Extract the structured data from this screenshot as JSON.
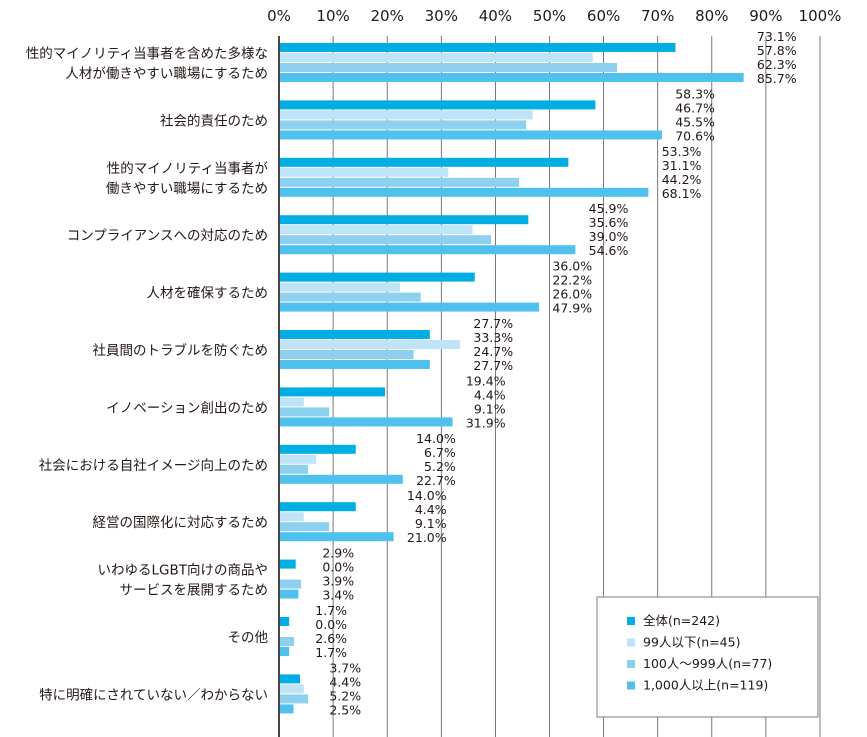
{
  "chart_data": {
    "type": "bar",
    "orientation": "horizontal",
    "title": "",
    "xlabel": "",
    "ylabel": "",
    "xlim": [
      0,
      100
    ],
    "x_ticks": [
      "0%",
      "10%",
      "20%",
      "30%",
      "40%",
      "50%",
      "60%",
      "70%",
      "80%",
      "90%",
      "100%"
    ],
    "grid": true,
    "legend_position": "bottom-right",
    "categories": [
      [
        "性的マイノリティ当事者を含めた多様な",
        "人材が働きやすい職場にするため"
      ],
      [
        "社会的責任のため"
      ],
      [
        "性的マイノリティ当事者が",
        "働きやすい職場にするため"
      ],
      [
        "コンプライアンスへの対応のため"
      ],
      [
        "人材を確保するため"
      ],
      [
        "社員間のトラブルを防ぐため"
      ],
      [
        "イノベーション創出のため"
      ],
      [
        "社会における自社イメージ向上のため"
      ],
      [
        "経営の国際化に対応するため"
      ],
      [
        "いわゆるLGBT向けの商品や",
        "サービスを展開するため"
      ],
      [
        "その他"
      ],
      [
        "特に明確にされていない／わからない"
      ]
    ],
    "series": [
      {
        "name": "全体(n=242)",
        "color": "#00aee4",
        "values": [
          73.1,
          58.3,
          53.3,
          45.9,
          36.0,
          27.7,
          19.4,
          14.0,
          14.0,
          2.9,
          1.7,
          3.7
        ]
      },
      {
        "name": "99人以下(n=45)",
        "color": "#bfe4f7",
        "values": [
          57.8,
          46.7,
          31.1,
          35.6,
          22.2,
          33.3,
          4.4,
          6.7,
          4.4,
          0.0,
          0.0,
          4.4
        ]
      },
      {
        "name": "100人～999人(n=77)",
        "color": "#8dd0f0",
        "values": [
          62.3,
          45.5,
          44.2,
          39.0,
          26.0,
          24.7,
          9.1,
          5.2,
          9.1,
          3.9,
          2.6,
          5.2
        ]
      },
      {
        "name": "1,000人以上(n=119)",
        "color": "#4fc1ee",
        "values": [
          85.7,
          70.6,
          68.1,
          54.6,
          47.9,
          27.7,
          31.9,
          22.7,
          21.0,
          3.4,
          1.7,
          2.5
        ]
      }
    ],
    "value_labels": [
      [
        "73.1%",
        "57.8%",
        "62.3%",
        "85.7%"
      ],
      [
        "58.3%",
        "46.7%",
        "45.5%",
        "70.6%"
      ],
      [
        "53.3%",
        "31.1%",
        "44.2%",
        "68.1%"
      ],
      [
        "45.9%",
        "35.6%",
        "39.0%",
        "54.6%"
      ],
      [
        "36.0%",
        "22.2%",
        "26.0%",
        "47.9%"
      ],
      [
        "27.7%",
        "33.3%",
        "24.7%",
        "27.7%"
      ],
      [
        "19.4%",
        "4.4%",
        "9.1%",
        "31.9%"
      ],
      [
        "14.0%",
        "6.7%",
        "5.2%",
        "22.7%"
      ],
      [
        "14.0%",
        "4.4%",
        "9.1%",
        "21.0%"
      ],
      [
        "2.9%",
        "0.0%",
        "3.9%",
        "3.4%"
      ],
      [
        "1.7%",
        "0.0%",
        "2.6%",
        "1.7%"
      ],
      [
        "3.7%",
        "4.4%",
        "5.2%",
        "2.5%"
      ]
    ]
  },
  "colors": {
    "grid": "#595757",
    "axis": "#231815",
    "legend_border": "#7d7d7d"
  }
}
